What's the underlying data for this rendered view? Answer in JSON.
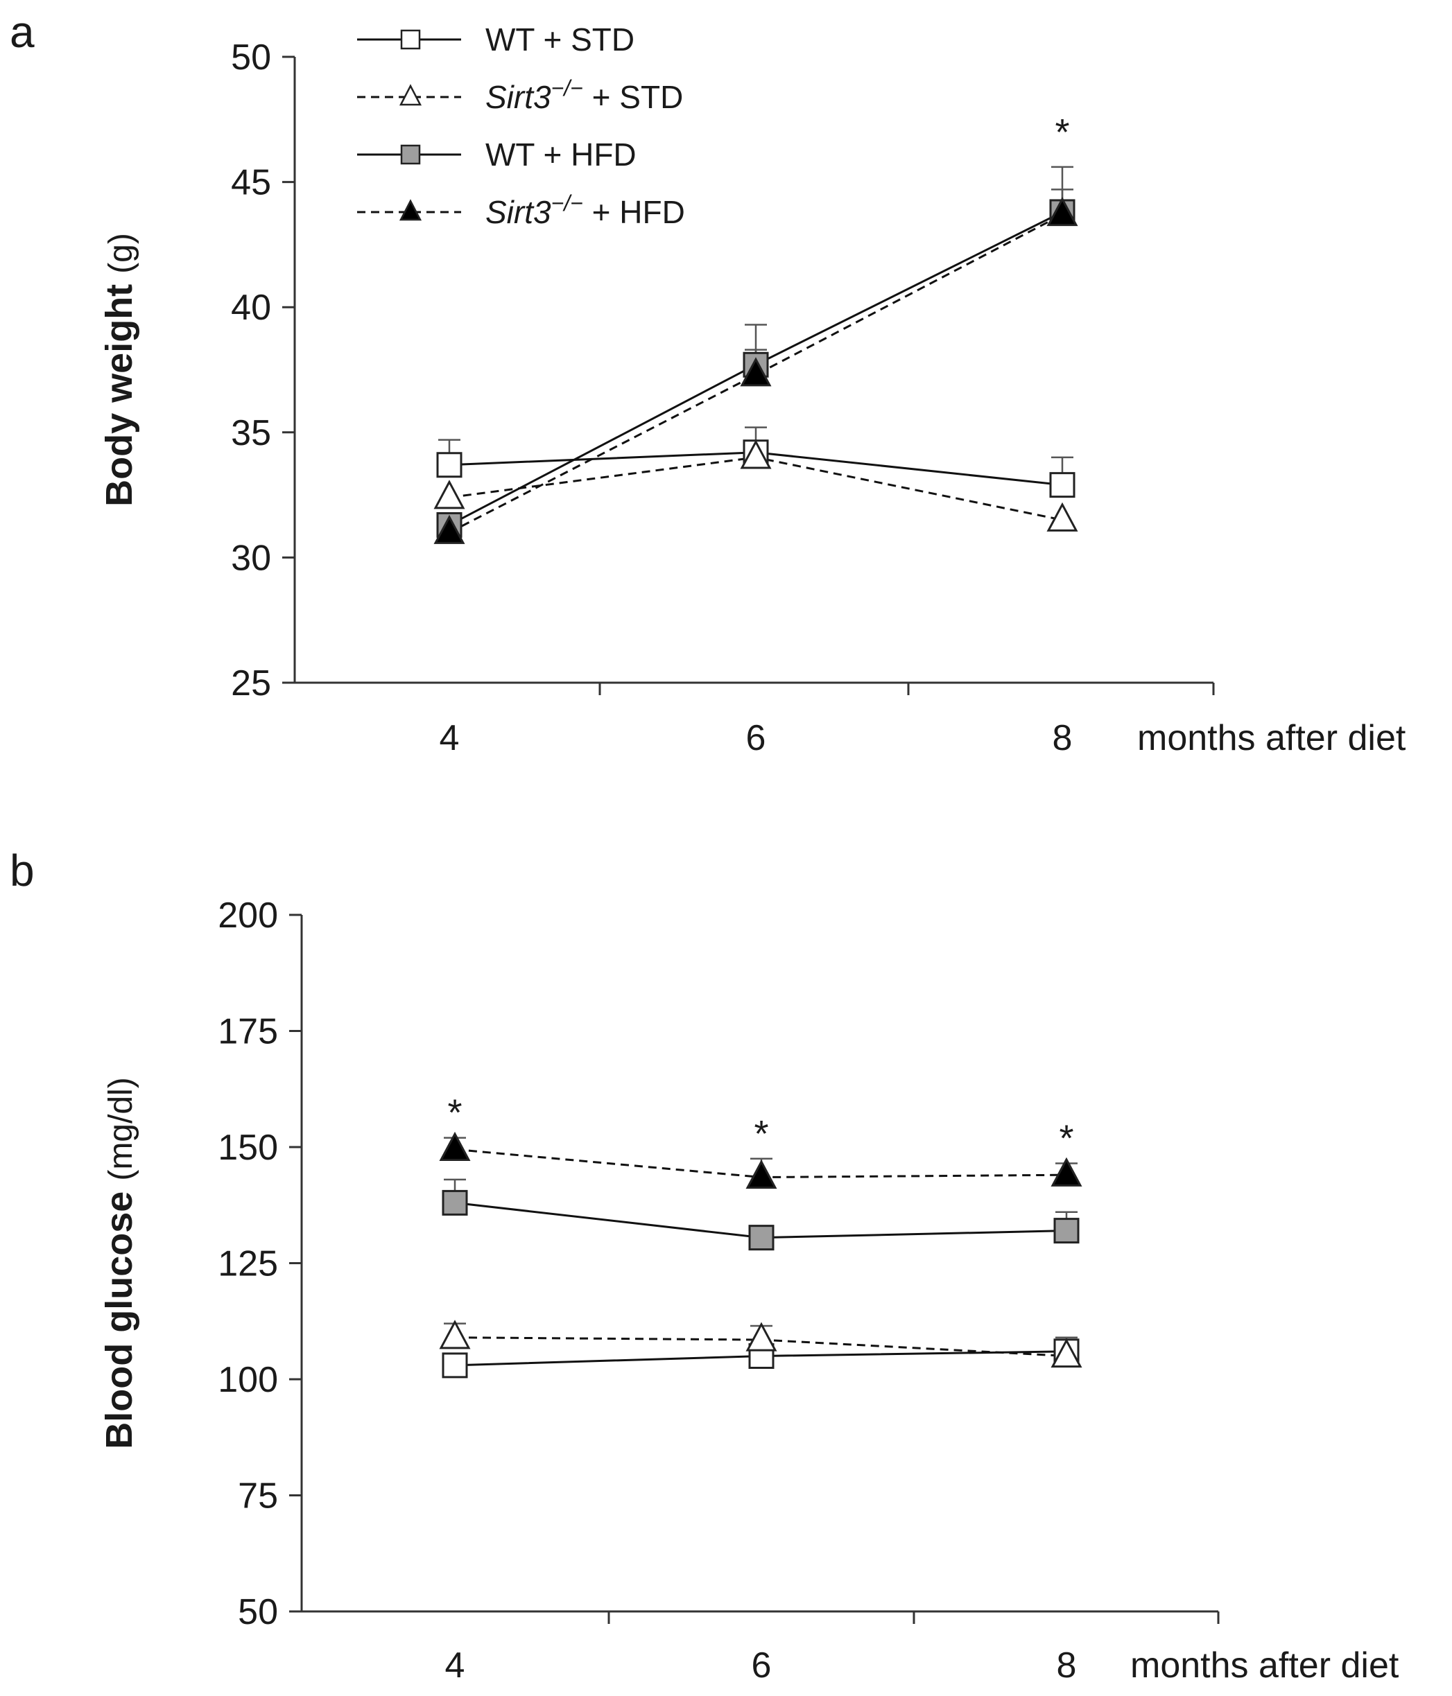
{
  "chart_data": [
    {
      "panel": "a",
      "type": "line",
      "ylabel": "Body weight",
      "ylabel_unit": "(g)",
      "xlabel": "months after diet",
      "x": [
        4,
        6,
        8
      ],
      "ylim": [
        25,
        50
      ],
      "yticks": [
        25,
        30,
        35,
        40,
        45,
        50
      ],
      "series": [
        {
          "name": "WT + STD",
          "values": [
            33.7,
            34.2,
            32.9
          ],
          "errors": [
            1.0,
            1.0,
            1.1
          ],
          "marker": "square",
          "fill": "#ffffff",
          "dash": false
        },
        {
          "name": "Sirt3−/− + STD",
          "values": [
            32.4,
            34.0,
            31.5
          ],
          "errors": [
            0,
            0,
            0
          ],
          "marker": "triangle",
          "fill": "#ffffff",
          "dash": true
        },
        {
          "name": "WT + HFD",
          "values": [
            31.3,
            37.7,
            43.8
          ],
          "errors": [
            0,
            1.6,
            1.8
          ],
          "marker": "square",
          "fill": "#9e9e9e",
          "dash": false
        },
        {
          "name": "Sirt3−/− + HFD",
          "values": [
            31.0,
            37.3,
            43.7
          ],
          "errors": [
            0,
            1.0,
            1.0
          ],
          "marker": "triangle",
          "fill": "#000000",
          "dash": true
        }
      ],
      "annotations": [
        {
          "text": "*",
          "x": 8
        }
      ]
    },
    {
      "panel": "b",
      "type": "line",
      "ylabel": "Blood glucose",
      "ylabel_unit": "(mg/dl)",
      "xlabel": "months after diet",
      "x": [
        4,
        6,
        8
      ],
      "ylim": [
        50,
        200
      ],
      "yticks": [
        50,
        75,
        100,
        125,
        150,
        175,
        200
      ],
      "series": [
        {
          "name": "WT + STD",
          "values": [
            103,
            105,
            106
          ],
          "errors": [
            0,
            0,
            3
          ],
          "marker": "square",
          "fill": "#ffffff",
          "dash": false
        },
        {
          "name": "Sirt3−/− + STD",
          "values": [
            109,
            108.5,
            105
          ],
          "errors": [
            3,
            3,
            0
          ],
          "marker": "triangle",
          "fill": "#ffffff",
          "dash": true
        },
        {
          "name": "WT + HFD",
          "values": [
            138,
            130.5,
            132
          ],
          "errors": [
            5,
            0,
            4
          ],
          "marker": "square",
          "fill": "#9e9e9e",
          "dash": false
        },
        {
          "name": "Sirt3−/− + HFD",
          "values": [
            149.5,
            143.5,
            144
          ],
          "errors": [
            2.5,
            4,
            2.5
          ],
          "marker": "triangle",
          "fill": "#000000",
          "dash": true
        }
      ],
      "annotations": [
        {
          "text": "*",
          "x": 4
        },
        {
          "text": "*",
          "x": 6
        },
        {
          "text": "*",
          "x": 8
        }
      ]
    }
  ],
  "legend": [
    {
      "prefix": "WT",
      "prefix_italic": false,
      "sup": "",
      "suffix": " + STD"
    },
    {
      "prefix": "Sirt3",
      "prefix_italic": true,
      "sup": "−/−",
      "suffix": " + STD"
    },
    {
      "prefix": "WT",
      "prefix_italic": false,
      "sup": "",
      "suffix": " + HFD"
    },
    {
      "prefix": "Sirt3",
      "prefix_italic": true,
      "sup": "−/−",
      "suffix": " + HFD"
    }
  ]
}
